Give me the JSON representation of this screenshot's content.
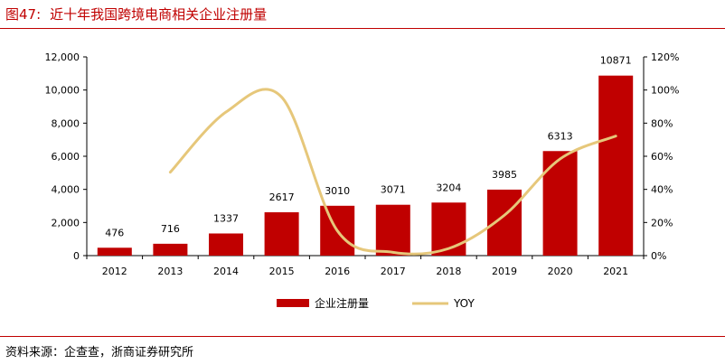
{
  "header": {
    "figure_no": "图47:",
    "title": "近十年我国跨境电商相关企业注册量"
  },
  "footer": {
    "source": "资料来源：企查查，浙商证券研究所"
  },
  "chart_data": {
    "type": "bar+line",
    "title": "近十年我国跨境电商相关企业注册量",
    "categories": [
      "2012",
      "2013",
      "2014",
      "2015",
      "2016",
      "2017",
      "2018",
      "2019",
      "2020",
      "2021"
    ],
    "series": [
      {
        "name": "企业注册量",
        "type": "bar",
        "axis": "left",
        "color": "#c00000",
        "values": [
          476,
          716,
          1337,
          2617,
          3010,
          3071,
          3204,
          3985,
          6313,
          10871
        ],
        "labels": [
          "476",
          "716",
          "1337",
          "2617",
          "3010",
          "3071",
          "3204",
          "3985",
          "6313",
          "10871"
        ]
      },
      {
        "name": "YOY",
        "type": "line",
        "axis": "right",
        "color": "#e6c77a",
        "values": [
          null,
          50.4,
          86.7,
          95.7,
          15.0,
          2.0,
          4.3,
          24.4,
          58.4,
          72.2
        ]
      }
    ],
    "y_left": {
      "min": 0,
      "max": 12000,
      "ticks": [
        "0",
        "2,000",
        "4,000",
        "6,000",
        "8,000",
        "10,000",
        "12,000"
      ]
    },
    "y_right": {
      "min": 0,
      "max": 120,
      "ticks": [
        "0%",
        "20%",
        "40%",
        "60%",
        "80%",
        "100%",
        "120%"
      ]
    },
    "legend": {
      "placement": "bottom"
    },
    "grid": false
  }
}
